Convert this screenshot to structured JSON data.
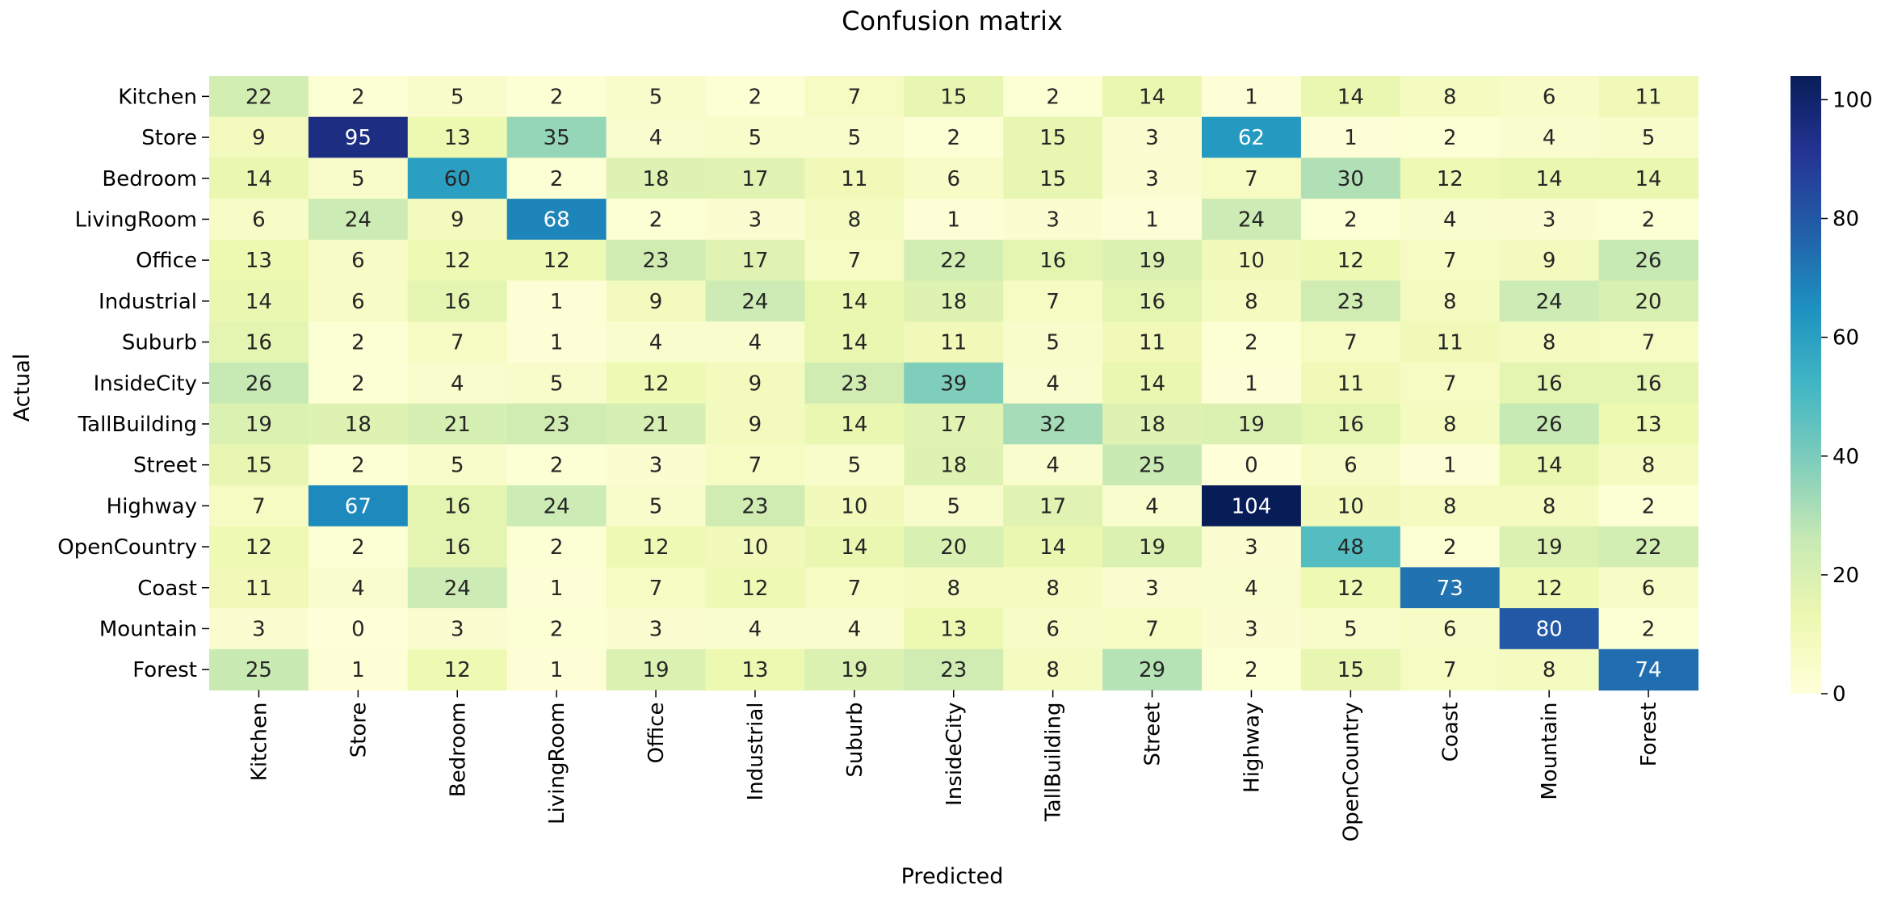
{
  "chart_data": {
    "type": "heatmap",
    "title": "Confusion matrix",
    "xlabel": "Predicted",
    "ylabel": "Actual",
    "x_categories": [
      "Kitchen",
      "Store",
      "Bedroom",
      "LivingRoom",
      "Office",
      "Industrial",
      "Suburb",
      "InsideCity",
      "TallBuilding",
      "Street",
      "Highway",
      "OpenCountry",
      "Coast",
      "Mountain",
      "Forest"
    ],
    "y_categories": [
      "Kitchen",
      "Store",
      "Bedroom",
      "LivingRoom",
      "Office",
      "Industrial",
      "Suburb",
      "InsideCity",
      "TallBuilding",
      "Street",
      "Highway",
      "OpenCountry",
      "Coast",
      "Mountain",
      "Forest"
    ],
    "values": [
      [
        22,
        2,
        5,
        2,
        5,
        2,
        7,
        15,
        2,
        14,
        1,
        14,
        8,
        6,
        11
      ],
      [
        9,
        95,
        13,
        35,
        4,
        5,
        5,
        2,
        15,
        3,
        62,
        1,
        2,
        4,
        5
      ],
      [
        14,
        5,
        60,
        2,
        18,
        17,
        11,
        6,
        15,
        3,
        7,
        30,
        12,
        14,
        14
      ],
      [
        6,
        24,
        9,
        68,
        2,
        3,
        8,
        1,
        3,
        1,
        24,
        2,
        4,
        3,
        2
      ],
      [
        13,
        6,
        12,
        12,
        23,
        17,
        7,
        22,
        16,
        19,
        10,
        12,
        7,
        9,
        26
      ],
      [
        14,
        6,
        16,
        1,
        9,
        24,
        14,
        18,
        7,
        16,
        8,
        23,
        8,
        24,
        20
      ],
      [
        16,
        2,
        7,
        1,
        4,
        4,
        14,
        11,
        5,
        11,
        2,
        7,
        11,
        8,
        7
      ],
      [
        26,
        2,
        4,
        5,
        12,
        9,
        23,
        39,
        4,
        14,
        1,
        11,
        7,
        16,
        16
      ],
      [
        19,
        18,
        21,
        23,
        21,
        9,
        14,
        17,
        32,
        18,
        19,
        16,
        8,
        26,
        13
      ],
      [
        15,
        2,
        5,
        2,
        3,
        7,
        5,
        18,
        4,
        25,
        0,
        6,
        1,
        14,
        8
      ],
      [
        7,
        67,
        16,
        24,
        5,
        23,
        10,
        5,
        17,
        4,
        104,
        10,
        8,
        8,
        2
      ],
      [
        12,
        2,
        16,
        2,
        12,
        10,
        14,
        20,
        14,
        19,
        3,
        48,
        2,
        19,
        22
      ],
      [
        11,
        4,
        24,
        1,
        7,
        12,
        7,
        8,
        8,
        3,
        4,
        12,
        73,
        12,
        6
      ],
      [
        3,
        0,
        3,
        2,
        3,
        4,
        4,
        13,
        6,
        7,
        3,
        5,
        6,
        80,
        2
      ],
      [
        25,
        1,
        12,
        1,
        19,
        13,
        19,
        23,
        8,
        29,
        2,
        15,
        7,
        8,
        74
      ]
    ],
    "colorbar": {
      "min": 0,
      "max": 104,
      "ticks": [
        0,
        20,
        40,
        60,
        80,
        100
      ],
      "colormap": "YlGnBu",
      "colors": [
        "#ffffd9",
        "#edf8b1",
        "#c7e9b4",
        "#7fcdbb",
        "#41b6c4",
        "#1d91c0",
        "#225ea8",
        "#253494",
        "#081d58"
      ]
    },
    "grid": false,
    "legend": "colorbar-right"
  }
}
